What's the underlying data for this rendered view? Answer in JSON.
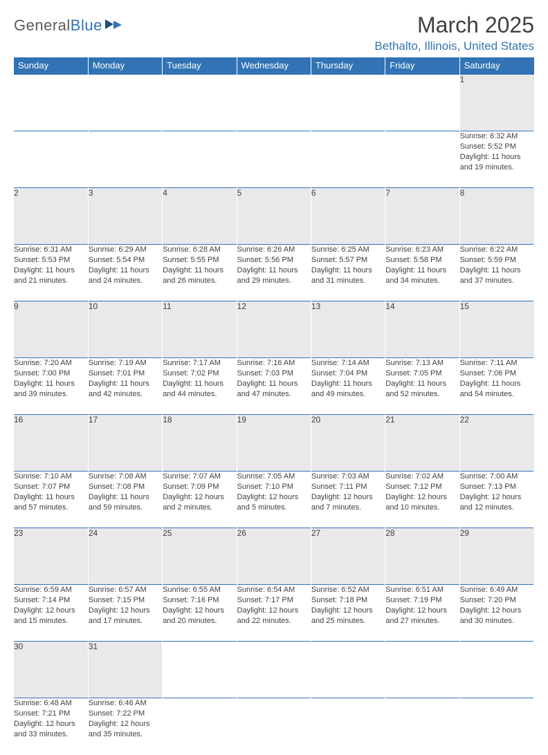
{
  "logo": {
    "text1": "General",
    "text2": "Blue"
  },
  "title": "March 2025",
  "location": "Bethalto, Illinois, United States",
  "colors": {
    "brand": "#3173b4",
    "header_bg": "#3173b4",
    "daynum_bg": "#e9e9e9",
    "text": "#404040"
  },
  "dayHeaders": [
    "Sunday",
    "Monday",
    "Tuesday",
    "Wednesday",
    "Thursday",
    "Friday",
    "Saturday"
  ],
  "weeks": [
    [
      null,
      null,
      null,
      null,
      null,
      null,
      {
        "n": "1",
        "sr": "6:32 AM",
        "ss": "5:52 PM",
        "dl": "11 hours and 19 minutes."
      }
    ],
    [
      {
        "n": "2",
        "sr": "6:31 AM",
        "ss": "5:53 PM",
        "dl": "11 hours and 21 minutes."
      },
      {
        "n": "3",
        "sr": "6:29 AM",
        "ss": "5:54 PM",
        "dl": "11 hours and 24 minutes."
      },
      {
        "n": "4",
        "sr": "6:28 AM",
        "ss": "5:55 PM",
        "dl": "11 hours and 26 minutes."
      },
      {
        "n": "5",
        "sr": "6:26 AM",
        "ss": "5:56 PM",
        "dl": "11 hours and 29 minutes."
      },
      {
        "n": "6",
        "sr": "6:25 AM",
        "ss": "5:57 PM",
        "dl": "11 hours and 31 minutes."
      },
      {
        "n": "7",
        "sr": "6:23 AM",
        "ss": "5:58 PM",
        "dl": "11 hours and 34 minutes."
      },
      {
        "n": "8",
        "sr": "6:22 AM",
        "ss": "5:59 PM",
        "dl": "11 hours and 37 minutes."
      }
    ],
    [
      {
        "n": "9",
        "sr": "7:20 AM",
        "ss": "7:00 PM",
        "dl": "11 hours and 39 minutes."
      },
      {
        "n": "10",
        "sr": "7:19 AM",
        "ss": "7:01 PM",
        "dl": "11 hours and 42 minutes."
      },
      {
        "n": "11",
        "sr": "7:17 AM",
        "ss": "7:02 PM",
        "dl": "11 hours and 44 minutes."
      },
      {
        "n": "12",
        "sr": "7:16 AM",
        "ss": "7:03 PM",
        "dl": "11 hours and 47 minutes."
      },
      {
        "n": "13",
        "sr": "7:14 AM",
        "ss": "7:04 PM",
        "dl": "11 hours and 49 minutes."
      },
      {
        "n": "14",
        "sr": "7:13 AM",
        "ss": "7:05 PM",
        "dl": "11 hours and 52 minutes."
      },
      {
        "n": "15",
        "sr": "7:11 AM",
        "ss": "7:06 PM",
        "dl": "11 hours and 54 minutes."
      }
    ],
    [
      {
        "n": "16",
        "sr": "7:10 AM",
        "ss": "7:07 PM",
        "dl": "11 hours and 57 minutes."
      },
      {
        "n": "17",
        "sr": "7:08 AM",
        "ss": "7:08 PM",
        "dl": "11 hours and 59 minutes."
      },
      {
        "n": "18",
        "sr": "7:07 AM",
        "ss": "7:09 PM",
        "dl": "12 hours and 2 minutes."
      },
      {
        "n": "19",
        "sr": "7:05 AM",
        "ss": "7:10 PM",
        "dl": "12 hours and 5 minutes."
      },
      {
        "n": "20",
        "sr": "7:03 AM",
        "ss": "7:11 PM",
        "dl": "12 hours and 7 minutes."
      },
      {
        "n": "21",
        "sr": "7:02 AM",
        "ss": "7:12 PM",
        "dl": "12 hours and 10 minutes."
      },
      {
        "n": "22",
        "sr": "7:00 AM",
        "ss": "7:13 PM",
        "dl": "12 hours and 12 minutes."
      }
    ],
    [
      {
        "n": "23",
        "sr": "6:59 AM",
        "ss": "7:14 PM",
        "dl": "12 hours and 15 minutes."
      },
      {
        "n": "24",
        "sr": "6:57 AM",
        "ss": "7:15 PM",
        "dl": "12 hours and 17 minutes."
      },
      {
        "n": "25",
        "sr": "6:55 AM",
        "ss": "7:16 PM",
        "dl": "12 hours and 20 minutes."
      },
      {
        "n": "26",
        "sr": "6:54 AM",
        "ss": "7:17 PM",
        "dl": "12 hours and 22 minutes."
      },
      {
        "n": "27",
        "sr": "6:52 AM",
        "ss": "7:18 PM",
        "dl": "12 hours and 25 minutes."
      },
      {
        "n": "28",
        "sr": "6:51 AM",
        "ss": "7:19 PM",
        "dl": "12 hours and 27 minutes."
      },
      {
        "n": "29",
        "sr": "6:49 AM",
        "ss": "7:20 PM",
        "dl": "12 hours and 30 minutes."
      }
    ],
    [
      {
        "n": "30",
        "sr": "6:48 AM",
        "ss": "7:21 PM",
        "dl": "12 hours and 33 minutes."
      },
      {
        "n": "31",
        "sr": "6:46 AM",
        "ss": "7:22 PM",
        "dl": "12 hours and 35 minutes."
      },
      null,
      null,
      null,
      null,
      null
    ]
  ],
  "labels": {
    "sunrise": "Sunrise:",
    "sunset": "Sunset:",
    "daylight": "Daylight:"
  }
}
